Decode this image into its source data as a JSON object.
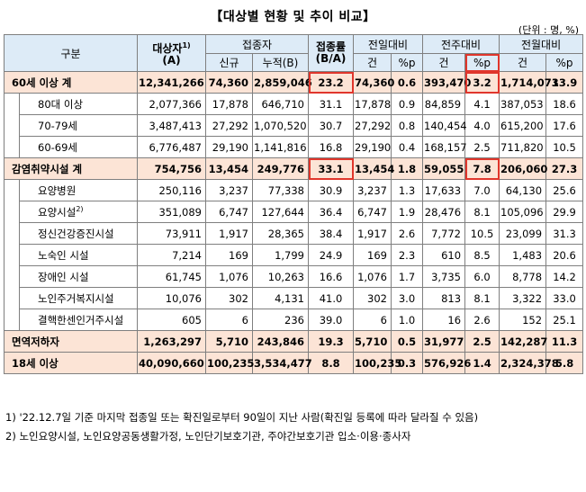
{
  "title": "【대상별 현황 및 추이 비교】",
  "unit": "(단위 : 명, %)",
  "headers": {
    "group": "구분",
    "target": "대상자",
    "target_sup": "1)",
    "target_sub": "(A)",
    "vaccinated": "접종자",
    "new": "신규",
    "cumulative": "누적(B)",
    "rate": "접종률",
    "rate_sub": "(B/A)",
    "prev_day": "전일대비",
    "prev_week": "전주대비",
    "prev_month": "전월대비",
    "count": "건",
    "pp": "%p"
  },
  "rows": [
    {
      "label": "60세 이상 계",
      "total": true,
      "target": "12,341,266",
      "new": "74,360",
      "cum": "2,859,046",
      "rate": "23.2",
      "d_cnt": "74,360",
      "d_pp": "0.6",
      "w_cnt": "393,470",
      "w_pp": "3.2",
      "m_cnt": "1,714,073",
      "m_pp": "13.9"
    },
    {
      "label": "80대 이상",
      "target": "2,077,366",
      "new": "17,878",
      "cum": "646,710",
      "rate": "31.1",
      "d_cnt": "17,878",
      "d_pp": "0.9",
      "w_cnt": "84,859",
      "w_pp": "4.1",
      "m_cnt": "387,053",
      "m_pp": "18.6"
    },
    {
      "label": "70-79세",
      "target": "3,487,413",
      "new": "27,292",
      "cum": "1,070,520",
      "rate": "30.7",
      "d_cnt": "27,292",
      "d_pp": "0.8",
      "w_cnt": "140,454",
      "w_pp": "4.0",
      "m_cnt": "615,200",
      "m_pp": "17.6"
    },
    {
      "label": "60-69세",
      "target": "6,776,487",
      "new": "29,190",
      "cum": "1,141,816",
      "rate": "16.8",
      "d_cnt": "29,190",
      "d_pp": "0.4",
      "w_cnt": "168,157",
      "w_pp": "2.5",
      "m_cnt": "711,820",
      "m_pp": "10.5"
    },
    {
      "label": "감염취약시설 계",
      "total": true,
      "target": "754,756",
      "new": "13,454",
      "cum": "249,776",
      "rate": "33.1",
      "d_cnt": "13,454",
      "d_pp": "1.8",
      "w_cnt": "59,055",
      "w_pp": "7.8",
      "m_cnt": "206,060",
      "m_pp": "27.3"
    },
    {
      "label": "요양병원",
      "target": "250,116",
      "new": "3,237",
      "cum": "77,338",
      "rate": "30.9",
      "d_cnt": "3,237",
      "d_pp": "1.3",
      "w_cnt": "17,633",
      "w_pp": "7.0",
      "m_cnt": "64,130",
      "m_pp": "25.6"
    },
    {
      "label": "요양시설",
      "sup": "2)",
      "target": "351,089",
      "new": "6,747",
      "cum": "127,644",
      "rate": "36.4",
      "d_cnt": "6,747",
      "d_pp": "1.9",
      "w_cnt": "28,476",
      "w_pp": "8.1",
      "m_cnt": "105,096",
      "m_pp": "29.9"
    },
    {
      "label": "정신건강증진시설",
      "target": "73,911",
      "new": "1,917",
      "cum": "28,365",
      "rate": "38.4",
      "d_cnt": "1,917",
      "d_pp": "2.6",
      "w_cnt": "7,772",
      "w_pp": "10.5",
      "m_cnt": "23,099",
      "m_pp": "31.3"
    },
    {
      "label": "노숙인 시설",
      "target": "7,214",
      "new": "169",
      "cum": "1,799",
      "rate": "24.9",
      "d_cnt": "169",
      "d_pp": "2.3",
      "w_cnt": "610",
      "w_pp": "8.5",
      "m_cnt": "1,483",
      "m_pp": "20.6"
    },
    {
      "label": "장애인 시설",
      "target": "61,745",
      "new": "1,076",
      "cum": "10,263",
      "rate": "16.6",
      "d_cnt": "1,076",
      "d_pp": "1.7",
      "w_cnt": "3,735",
      "w_pp": "6.0",
      "m_cnt": "8,778",
      "m_pp": "14.2"
    },
    {
      "label": "노인주거복지시설",
      "target": "10,076",
      "new": "302",
      "cum": "4,131",
      "rate": "41.0",
      "d_cnt": "302",
      "d_pp": "3.0",
      "w_cnt": "813",
      "w_pp": "8.1",
      "m_cnt": "3,322",
      "m_pp": "33.0"
    },
    {
      "label": "결핵한센인거주시설",
      "target": "605",
      "new": "6",
      "cum": "236",
      "rate": "39.0",
      "d_cnt": "6",
      "d_pp": "1.0",
      "w_cnt": "16",
      "w_pp": "2.6",
      "m_cnt": "152",
      "m_pp": "25.1"
    },
    {
      "label": "면역저하자",
      "total": true,
      "target": "1,263,297",
      "new": "5,710",
      "cum": "243,846",
      "rate": "19.3",
      "d_cnt": "5,710",
      "d_pp": "0.5",
      "w_cnt": "31,977",
      "w_pp": "2.5",
      "m_cnt": "142,287",
      "m_pp": "11.3"
    },
    {
      "label": "18세 이상",
      "total": true,
      "target": "40,090,660",
      "new": "100,235",
      "cum": "3,534,477",
      "rate": "8.8",
      "d_cnt": "100,235",
      "d_pp": "0.3",
      "w_cnt": "576,926",
      "w_pp": "1.4",
      "m_cnt": "2,324,378",
      "m_pp": "5.8"
    }
  ],
  "notes": [
    "1) '22.12.7일 기준 마지막 접종일 또는 확진일로부터 90일이 지난 사람(확진일 등록에 따라 달라질 수 있음)",
    "2) 노인요양시설, 노인요양공동생활가정, 노인단기보호기관, 주야간보호기관 입소·이용·종사자"
  ]
}
